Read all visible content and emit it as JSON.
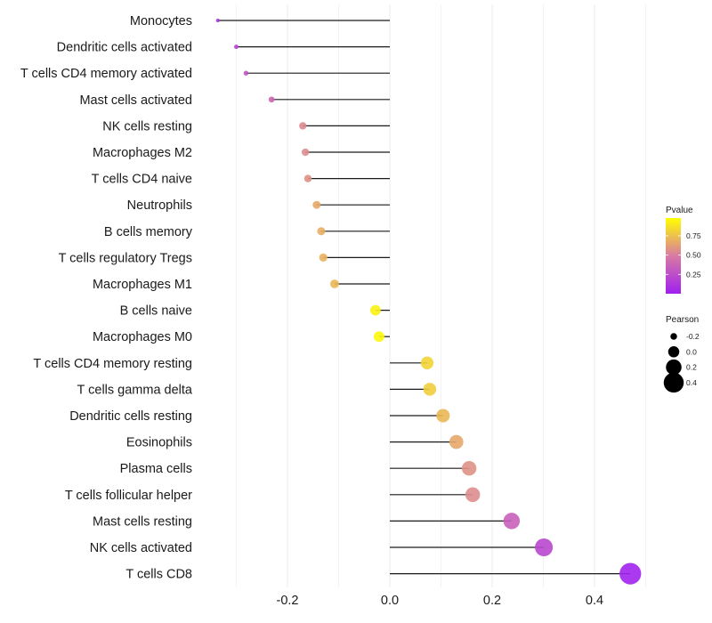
{
  "chart_data": {
    "type": "lollipop",
    "title": "",
    "xlabel": "",
    "ylabel": "",
    "xlim": [
      -0.38,
      0.5
    ],
    "x_ticks": [
      -0.2,
      0.0,
      0.2,
      0.4
    ],
    "x_tick_labels": [
      "-0.2",
      "0.0",
      "0.2",
      "0.4"
    ],
    "grid": true,
    "categories": [
      "Monocytes",
      "Dendritic cells activated",
      "T cells CD4 memory activated",
      "Mast cells activated",
      "NK cells resting",
      "Macrophages M2",
      "T cells CD4 naive",
      "Neutrophils",
      "B cells memory",
      "T cells regulatory  Tregs ",
      "Macrophages M1",
      "B cells naive",
      "Macrophages M0",
      "T cells CD4 memory resting",
      "T cells gamma delta",
      "Dendritic cells resting",
      "Eosinophils",
      "Plasma cells",
      "T cells follicular helper",
      "Mast cells resting",
      "NK cells activated",
      "T cells CD8"
    ],
    "pearson": [
      -0.336,
      -0.3,
      -0.281,
      -0.231,
      -0.17,
      -0.165,
      -0.16,
      -0.143,
      -0.134,
      -0.13,
      -0.108,
      -0.028,
      -0.021,
      0.073,
      0.078,
      0.104,
      0.13,
      0.155,
      0.162,
      0.238,
      0.301,
      0.47
    ],
    "pvalue": [
      0.1,
      0.2,
      0.3,
      0.38,
      0.55,
      0.56,
      0.58,
      0.66,
      0.68,
      0.7,
      0.72,
      0.93,
      0.95,
      0.82,
      0.8,
      0.72,
      0.66,
      0.58,
      0.56,
      0.35,
      0.22,
      0.02
    ],
    "legend": {
      "color": {
        "title": "Pvalue",
        "ticks": [
          0.25,
          0.5,
          0.75
        ],
        "tick_labels": [
          "0.25",
          "0.50",
          "0.75"
        ],
        "range": [
          0.0,
          0.98
        ],
        "low_color": "#a020f0",
        "mid_color": "#d87aa4",
        "high_color": "#ffff00",
        "placement": "right"
      },
      "size": {
        "title": "Pearson",
        "values": [
          -0.2,
          0.0,
          0.2,
          0.4
        ],
        "labels": [
          "-0.2",
          "0.0",
          "0.2",
          "0.4"
        ],
        "placement": "right"
      }
    },
    "stem_color": "#1a1a1a",
    "grid_color": "#ebebeb"
  }
}
